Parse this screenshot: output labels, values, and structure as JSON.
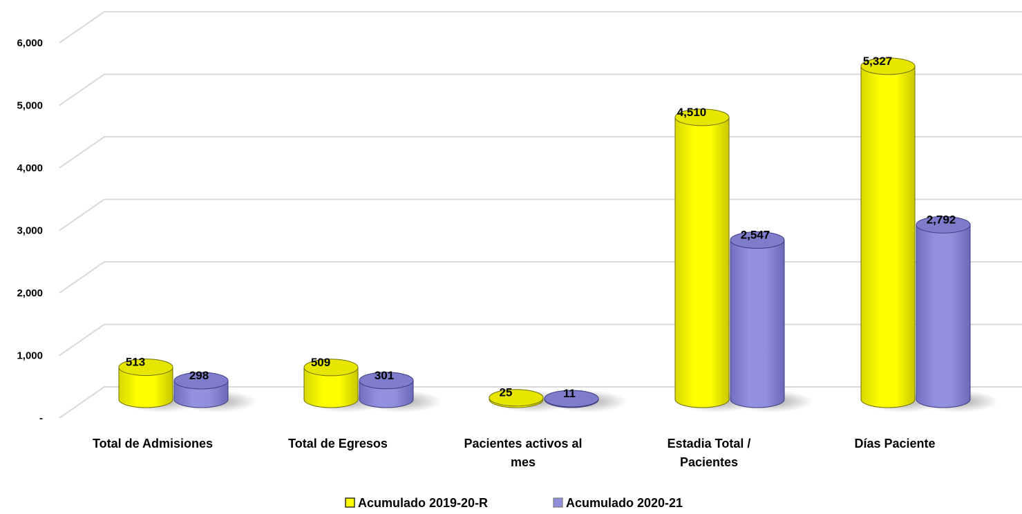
{
  "chart_data": {
    "type": "bar",
    "style": "3d-cylinder",
    "categories": [
      [
        "Total de Admisiones"
      ],
      [
        "Total de Egresos"
      ],
      [
        "Pacientes activos al",
        "mes"
      ],
      [
        "Estadia Total /",
        "Pacientes"
      ],
      [
        "Días Paciente"
      ]
    ],
    "series": [
      {
        "name": "Acumulado 2019-20-R",
        "values": [
          513,
          509,
          25,
          4510,
          5327
        ],
        "labels": [
          "513",
          "509",
          "25",
          "4,510",
          "5,327"
        ],
        "color": "#ffff00"
      },
      {
        "name": "Acumulado 2020-21",
        "values": [
          298,
          301,
          11,
          2547,
          2792
        ],
        "labels": [
          "298",
          "301",
          "11",
          "2,547",
          "2,792"
        ],
        "color": "#8f8fdc"
      }
    ],
    "y_ticks": [
      {
        "value": 0,
        "label": "-"
      },
      {
        "value": 1000,
        "label": "1,000"
      },
      {
        "value": 2000,
        "label": "2,000"
      },
      {
        "value": 3000,
        "label": "3,000"
      },
      {
        "value": 4000,
        "label": "4,000"
      },
      {
        "value": 5000,
        "label": "5,000"
      },
      {
        "value": 6000,
        "label": "6,000"
      }
    ],
    "ylim": [
      0,
      6000
    ],
    "grid": true,
    "legend": "bottom",
    "title": "",
    "xlabel": "",
    "ylabel": ""
  }
}
